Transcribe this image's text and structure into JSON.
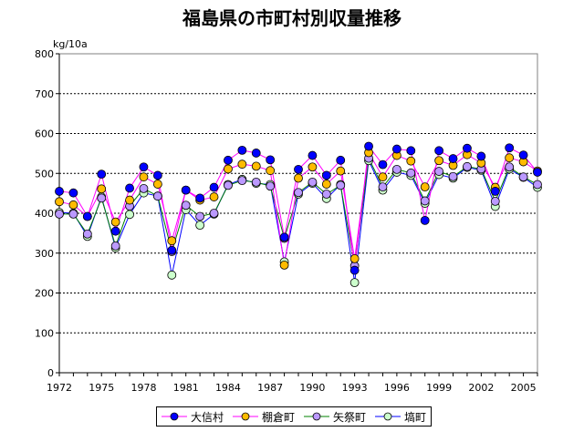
{
  "chart_data": {
    "type": "line",
    "title": "福島県の市町村別収量推移",
    "ylabel": "kg/10a",
    "ylim": [
      0,
      800
    ],
    "yticks": [
      "0",
      "100",
      "200",
      "300",
      "400",
      "500",
      "600",
      "700",
      "800"
    ],
    "x": [
      1972,
      1973,
      1974,
      1975,
      1976,
      1977,
      1978,
      1979,
      1980,
      1981,
      1982,
      1983,
      1984,
      1985,
      1986,
      1987,
      1988,
      1989,
      1990,
      1991,
      1992,
      1993,
      1994,
      1995,
      1996,
      1997,
      1998,
      1999,
      2000,
      2001,
      2002,
      2003,
      2004,
      2005,
      2006
    ],
    "xticks": [
      "1972",
      "1975",
      "1978",
      "1981",
      "1984",
      "1987",
      "1990",
      "1993",
      "1996",
      "1999",
      "2002",
      "2005"
    ],
    "grid": true,
    "legend_position": "bottom",
    "series": [
      {
        "name": "大信村",
        "color": "#0000ff",
        "line": "#ff00ff",
        "values": [
          455,
          451,
          392,
          498,
          355,
          463,
          516,
          495,
          307,
          458,
          438,
          465,
          533,
          558,
          551,
          534,
          340,
          510,
          545,
          495,
          533,
          257,
          568,
          522,
          561,
          557,
          382,
          557,
          537,
          563,
          543,
          455,
          564,
          546,
          503
        ]
      },
      {
        "name": "棚倉町",
        "color": "#ffbb00",
        "line": "#ff00ff",
        "values": [
          429,
          421,
          392,
          461,
          378,
          433,
          491,
          473,
          331,
          458,
          433,
          441,
          511,
          523,
          518,
          507,
          270,
          488,
          516,
          473,
          506,
          286,
          552,
          491,
          545,
          531,
          466,
          532,
          520,
          547,
          526,
          465,
          539,
          529,
          506
        ]
      },
      {
        "name": "矢祭町",
        "color": "#bb99ff",
        "line": "#008000",
        "values": [
          398,
          398,
          348,
          438,
          318,
          418,
          462,
          443,
          304,
          420,
          392,
          400,
          470,
          482,
          478,
          468,
          337,
          452,
          478,
          448,
          470,
          268,
          538,
          466,
          510,
          501,
          431,
          505,
          492,
          517,
          511,
          430,
          516,
          491,
          472
        ]
      },
      {
        "name": "塙町",
        "color": "#ccffcc",
        "line": "#0000ff",
        "values": [
          402,
          400,
          342,
          441,
          313,
          397,
          451,
          443,
          245,
          409,
          370,
          398,
          472,
          485,
          475,
          472,
          278,
          448,
          475,
          437,
          472,
          226,
          532,
          458,
          503,
          495,
          425,
          497,
          488,
          515,
          508,
          417,
          511,
          490,
          465
        ]
      }
    ]
  }
}
